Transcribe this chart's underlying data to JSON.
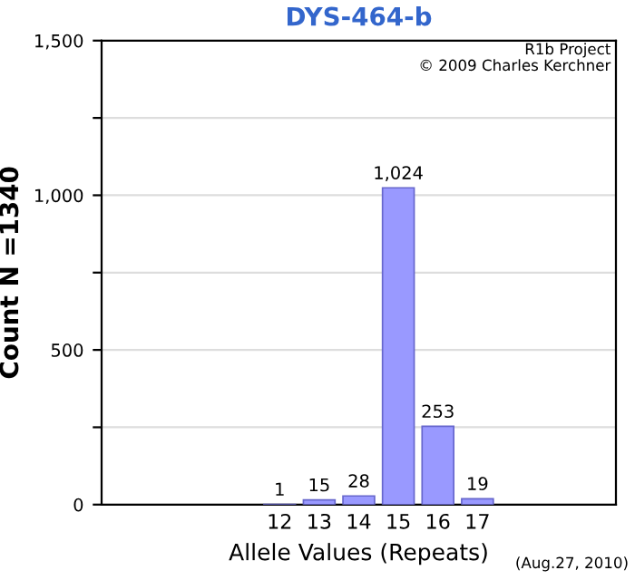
{
  "chart_data": {
    "type": "bar",
    "title": "DYS-464-b",
    "xlabel": "Allele Values (Repeats)",
    "ylabel": "Count N =1340",
    "annotations": [
      "R1b Project",
      "© 2009 Charles Kerchner",
      "(Aug.27, 2010)"
    ],
    "categories": [
      null,
      null,
      null,
      null,
      "12",
      "13",
      "14",
      "15",
      "16",
      "17",
      null,
      null,
      null
    ],
    "values": [
      null,
      null,
      null,
      null,
      1,
      15,
      28,
      1024,
      253,
      19,
      null,
      null,
      null
    ],
    "value_labels": [
      null,
      null,
      null,
      null,
      "1",
      "15",
      "28",
      "1,024",
      "253",
      "19",
      null,
      null,
      null
    ],
    "color": "#9999ff",
    "ylim": [
      0,
      1500
    ],
    "yticks": [
      0,
      {
        "value": 250,
        "label": null
      },
      500,
      {
        "value": 750,
        "label": null
      },
      {
        "value": 1000,
        "label": "1,000"
      },
      {
        "value": 1250,
        "label": null
      },
      {
        "value": 1500,
        "label": "1,500"
      }
    ],
    "grid": "y"
  }
}
